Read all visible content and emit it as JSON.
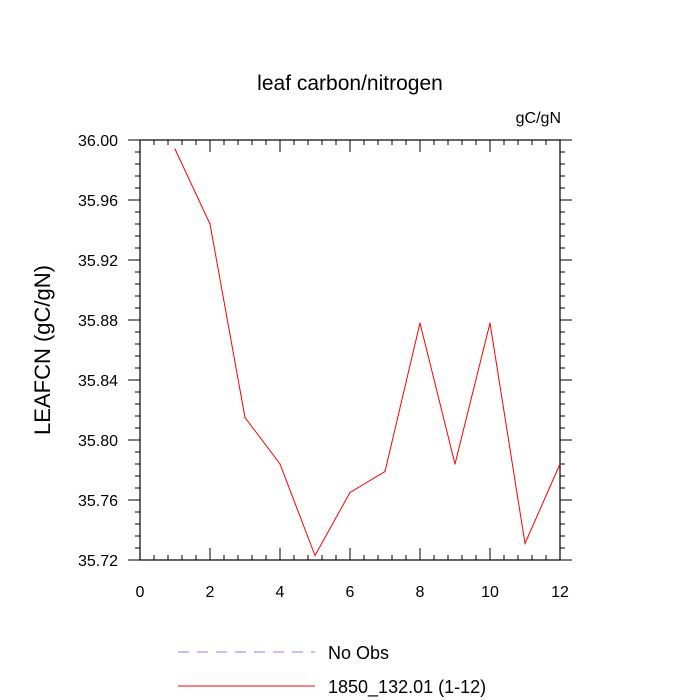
{
  "chart_data": {
    "type": "line",
    "title": "leaf carbon/nitrogen",
    "units": "gC/gN",
    "xlabel": "",
    "ylabel": "LEAFCN  (gC/gN)",
    "xlim": [
      0,
      12
    ],
    "ylim": [
      35.72,
      36.0
    ],
    "xticks": [
      0,
      2,
      4,
      6,
      8,
      10,
      12
    ],
    "xtick_labels": [
      "0",
      "2",
      "4",
      "6",
      "8",
      "10",
      "12"
    ],
    "yticks": [
      35.72,
      35.76,
      35.8,
      35.84,
      35.88,
      35.92,
      35.96,
      36.0
    ],
    "ytick_labels": [
      "35.72",
      "35.76",
      "35.80",
      "35.84",
      "35.88",
      "35.92",
      "35.96",
      "36.00"
    ],
    "grid": false,
    "legend_position": "bottom",
    "series": [
      {
        "name": "1850_132.01 (1-12)",
        "color": "#ff0000",
        "style": "solid",
        "x": [
          1,
          2,
          3,
          4,
          5,
          6,
          7,
          8,
          9,
          10,
          11,
          12
        ],
        "y": [
          35.994,
          35.944,
          35.815,
          35.784,
          35.723,
          35.765,
          35.779,
          35.878,
          35.784,
          35.878,
          35.731,
          35.784
        ]
      }
    ],
    "legend": [
      {
        "label": "No Obs",
        "color": "#8080ff",
        "style": "dashed"
      },
      {
        "label": "1850_132.01 (1-12)",
        "color": "#ff0000",
        "style": "solid"
      }
    ]
  }
}
